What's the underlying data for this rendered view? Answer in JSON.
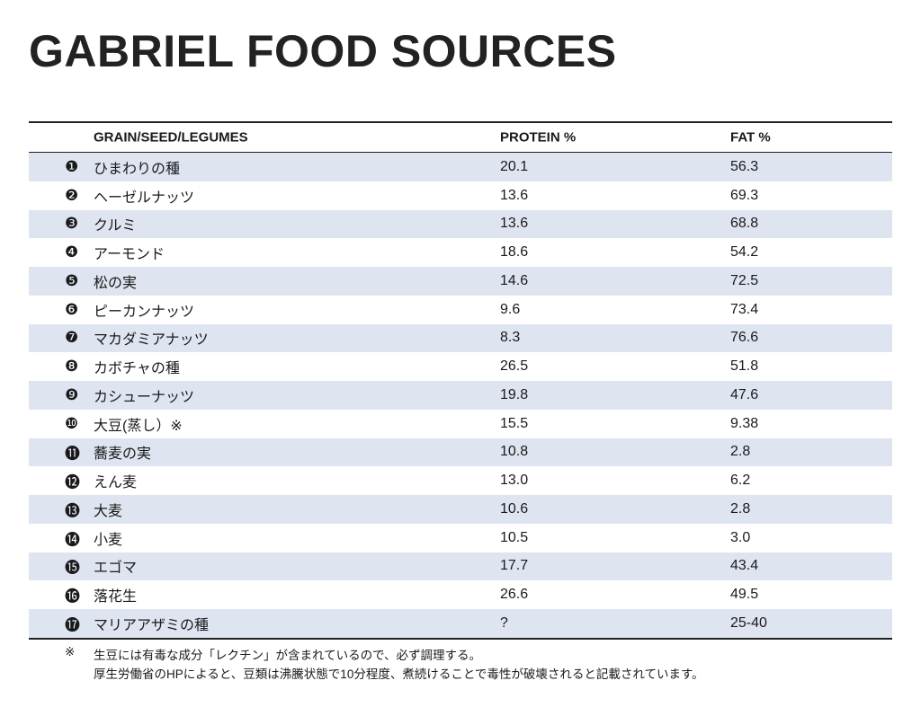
{
  "header": {
    "title": "GABRIEL FOOD SOURCES"
  },
  "table": {
    "columns": [
      "GRAIN/SEED/LEGUMES",
      "PROTEIN %",
      "FAT %"
    ],
    "rows": [
      [
        "❶",
        "ひまわりの種",
        "20.1",
        "56.3"
      ],
      [
        "❷",
        "ヘーゼルナッツ",
        "13.6",
        "69.3"
      ],
      [
        "❸",
        "クルミ",
        "13.6",
        "68.8"
      ],
      [
        "❹",
        "アーモンド",
        "18.6",
        "54.2"
      ],
      [
        "❺",
        "松の実",
        "14.6",
        "72.5"
      ],
      [
        "❻",
        "ピーカンナッツ",
        "9.6",
        "73.4"
      ],
      [
        "❼",
        "マカダミアナッツ",
        "8.3",
        "76.6"
      ],
      [
        "❽",
        "カボチャの種",
        "26.5",
        "51.8"
      ],
      [
        "❾",
        "カシューナッツ",
        "19.8",
        "47.6"
      ],
      [
        "❿",
        "大豆(蒸し）※",
        "15.5",
        "9.38"
      ],
      [
        "⓫",
        "蕎麦の実",
        "10.8",
        "2.8"
      ],
      [
        "⓬",
        "えん麦",
        "13.0",
        "6.2"
      ],
      [
        "⓭",
        "大麦",
        "10.6",
        "2.8"
      ],
      [
        "⓮",
        "小麦",
        "10.5",
        "3.0"
      ],
      [
        "⓯",
        "エゴマ",
        "17.7",
        "43.4"
      ],
      [
        "⓰",
        "落花生",
        "26.6",
        "49.5"
      ],
      [
        "⓱",
        "マリアアザミの種",
        "?",
        "25-40"
      ]
    ]
  },
  "footnote": {
    "mark": "※",
    "lines": [
      "生豆には有毒な成分「レクチン」が含まれているので、必ず調理する。",
      "厚生労働省のHPによると、豆類は沸騰状態で10分程度、煮続けることで毒性が破壊されると記載されています。"
    ]
  }
}
